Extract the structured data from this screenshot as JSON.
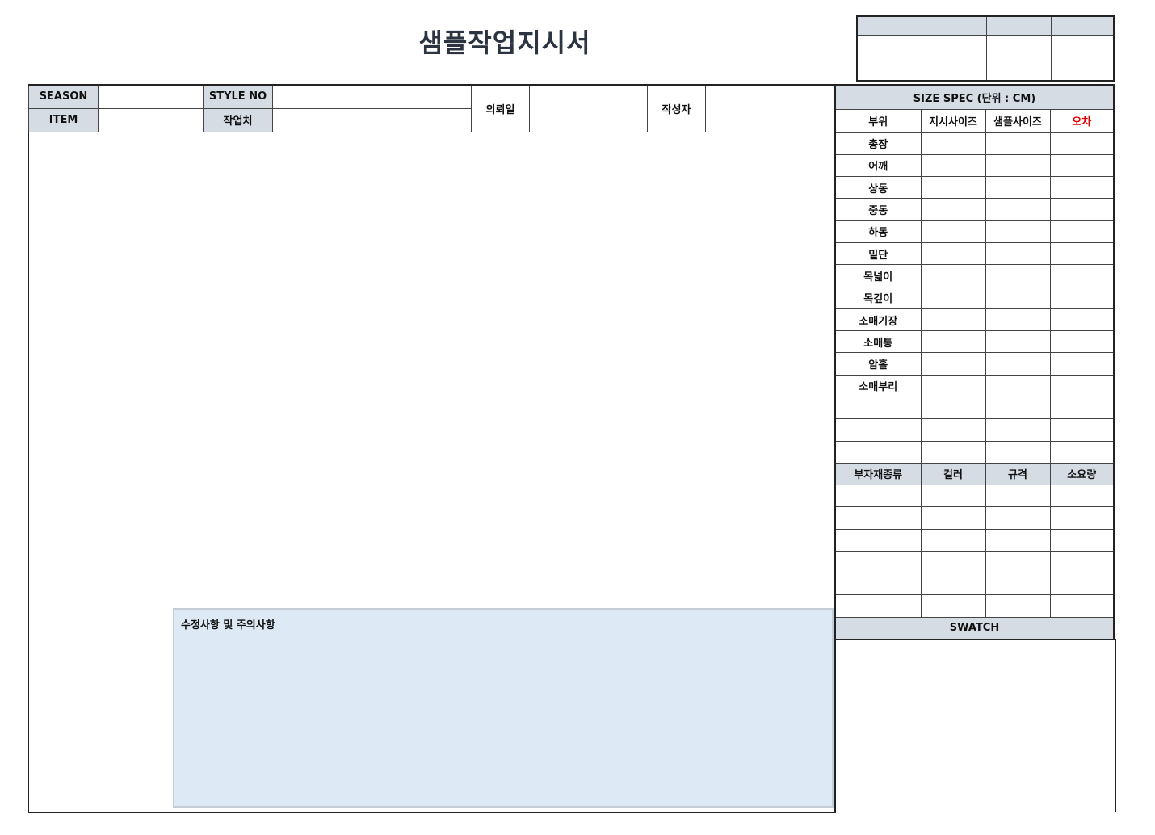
{
  "title": "샘플작업지시서",
  "approval": {
    "headers": [
      "",
      "",
      "",
      ""
    ],
    "values": [
      "",
      "",
      "",
      ""
    ]
  },
  "header": {
    "season_label": "SEASON",
    "season": "",
    "style_no_label": "STYLE NO",
    "style_no": "",
    "item_label": "ITEM",
    "item": "",
    "workplace_label": "작업처",
    "workplace": "",
    "request_date_label": "의뢰일",
    "request_date": "",
    "author_label": "작성자",
    "author": ""
  },
  "size_spec": {
    "title": "SIZE SPEC (단위 : CM)",
    "columns": [
      "부위",
      "지시사이즈",
      "샘플사이즈",
      "오차"
    ],
    "error_color": "#e00000",
    "rows": [
      "총장",
      "어깨",
      "상동",
      "중동",
      "하동",
      "밑단",
      "목넓이",
      "목깊이",
      "소매기장",
      "소매통",
      "암홀",
      "소매부리",
      "",
      "",
      ""
    ]
  },
  "materials": {
    "columns": [
      "부자재종류",
      "컬러",
      "규격",
      "소요량"
    ],
    "row_count": 6
  },
  "swatch": {
    "title": "SWATCH"
  },
  "notes": {
    "title": "수정사항 및 주의사항",
    "text": ""
  }
}
